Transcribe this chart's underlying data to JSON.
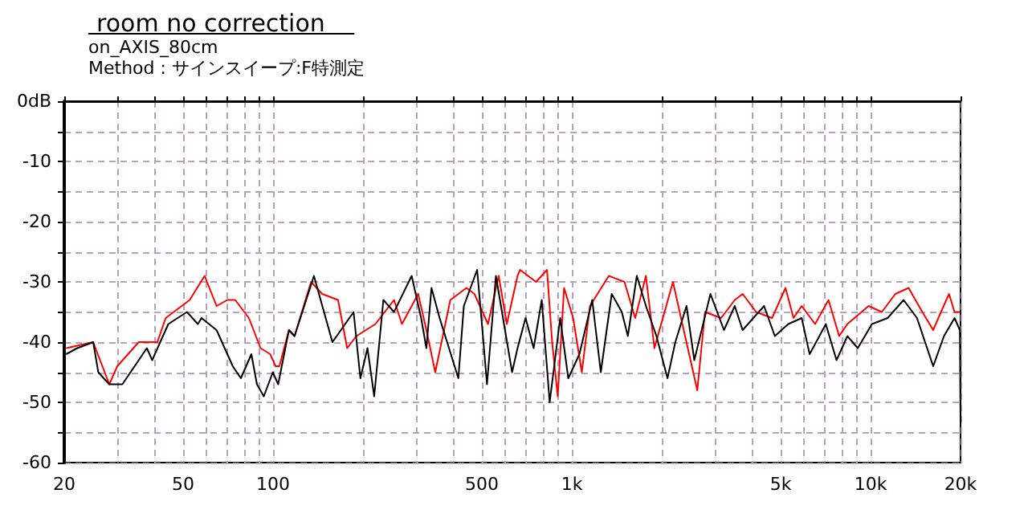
{
  "chart_data": {
    "type": "line",
    "title": "room no correction",
    "subtitle": "on_AXIS_80cm",
    "annotations": [
      "Method : サインスイープ:F特測定"
    ],
    "xlim": [
      20,
      20000
    ],
    "ylim": [
      -60,
      0
    ],
    "log": "x",
    "grid": true,
    "marker": "none",
    "line_style": "solid",
    "xticks": [
      20,
      {
        "value": 30,
        "label": null
      },
      {
        "value": 40,
        "label": null
      },
      50,
      {
        "value": 60,
        "label": null
      },
      {
        "value": 70,
        "label": null
      },
      {
        "value": 80,
        "label": null
      },
      {
        "value": 90,
        "label": null
      },
      100,
      {
        "value": 200,
        "label": null
      },
      {
        "value": 300,
        "label": null
      },
      {
        "value": 400,
        "label": null
      },
      500,
      {
        "value": 600,
        "label": null
      },
      {
        "value": 700,
        "label": null
      },
      {
        "value": 800,
        "label": null
      },
      {
        "value": 900,
        "label": null
      },
      {
        "value": 1000,
        "label": "1k"
      },
      {
        "value": 2000,
        "label": null
      },
      {
        "value": 3000,
        "label": null
      },
      {
        "value": 4000,
        "label": null
      },
      {
        "value": 5000,
        "label": "5k"
      },
      {
        "value": 6000,
        "label": null
      },
      {
        "value": 7000,
        "label": null
      },
      {
        "value": 8000,
        "label": null
      },
      {
        "value": 9000,
        "label": null
      },
      {
        "value": 10000,
        "label": "10k"
      },
      {
        "value": 20000,
        "label": "20k"
      }
    ],
    "yticks": [
      {
        "value": 0,
        "label": "0dB"
      },
      {
        "value": -5,
        "label": null
      },
      -10,
      {
        "value": -15,
        "label": null
      },
      -20,
      {
        "value": -25,
        "label": null
      },
      -30,
      {
        "value": -35,
        "label": null
      },
      -40,
      {
        "value": -45,
        "label": null
      },
      -50,
      {
        "value": -55,
        "label": null
      },
      -60
    ],
    "series": [
      {
        "color": "#ff0000",
        "x": [
          20.3,
          25,
          28.3,
          30.1,
          35.5,
          41,
          43.7,
          52.6,
          59,
          64.7,
          70.3,
          74.7,
          83,
          90.8,
          97.8,
          102,
          105,
          113,
          118,
          134,
          146,
          165,
          177,
          190,
          220,
          254,
          270,
          306,
          326,
          349,
          392,
          444,
          472,
          524,
          569,
          606,
          658,
          671,
          759,
          826,
          859,
          897,
          942,
          1010,
          1080,
          1150,
          1330,
          1500,
          1630,
          1770,
          1890,
          2180,
          2320,
          2630,
          2790,
          3160,
          3510,
          3730,
          4140,
          4680,
          5190,
          5520,
          5880,
          6520,
          7230,
          7850,
          8360,
          9850,
          10900,
          12100,
          13400,
          14900,
          16200,
          17200,
          18300,
          19100,
          19900
        ],
        "values": [
          -41,
          -40,
          -47,
          -44,
          -40,
          -40,
          -36,
          -33,
          -29,
          -34,
          -33,
          -33,
          -36,
          -41,
          -42,
          -44,
          -44,
          -38,
          -39,
          -30,
          -32,
          -33,
          -41,
          -39,
          -37,
          -33,
          -37,
          -32,
          -38,
          -45,
          -33,
          -31,
          -32,
          -37,
          -29,
          -37,
          -29,
          -28,
          -30,
          -28,
          -40,
          -49,
          -31,
          -36,
          -45,
          -34,
          -29,
          -30,
          -36,
          -29,
          -41,
          -30,
          -36,
          -48,
          -35,
          -36,
          -33,
          -32,
          -35,
          -36,
          -31,
          -36,
          -34,
          -37,
          -33,
          -39,
          -37,
          -34,
          -35,
          -32,
          -31,
          -35,
          -38,
          -35,
          -32,
          -35,
          -35
        ]
      },
      {
        "color": "#000000",
        "x": [
          20.3,
          22.1,
          25,
          26,
          28.3,
          31.3,
          37.8,
          39.4,
          41.9,
          44.6,
          51.5,
          56,
          57.6,
          64.7,
          73.3,
          78,
          84.6,
          88.3,
          93.1,
          99.8,
          104,
          113,
          118,
          137,
          158,
          186,
          196,
          207,
          218,
          234,
          254,
          291,
          313,
          326,
          339,
          361,
          417,
          435,
          482,
          502,
          520,
          557,
          631,
          658,
          700,
          745,
          793,
          843,
          914,
          973,
          1060,
          1170,
          1250,
          1360,
          1470,
          1540,
          1650,
          1770,
          1920,
          2090,
          2220,
          2420,
          2570,
          2910,
          3230,
          3510,
          3730,
          4050,
          4400,
          4780,
          5300,
          5880,
          6250,
          7080,
          7690,
          8360,
          9060,
          10100,
          11400,
          12900,
          14300,
          16200,
          17600,
          19100,
          19900,
          20000
        ],
        "values": [
          -42,
          -41,
          -40,
          -45,
          -47,
          -47,
          -41,
          -43,
          -40,
          -37,
          -35,
          -37,
          -36,
          -38,
          -44,
          -46,
          -42,
          -47,
          -49,
          -45,
          -47,
          -38,
          -39,
          -29,
          -40,
          -35,
          -46,
          -41,
          -49,
          -33,
          -35,
          -29,
          -36,
          -41,
          -31,
          -36,
          -46,
          -34,
          -28,
          -38,
          -47,
          -29,
          -45,
          -41,
          -36,
          -41,
          -33,
          -50,
          -36,
          -46,
          -42,
          -33,
          -45,
          -32,
          -35,
          -39,
          -29,
          -34,
          -39,
          -46,
          -40,
          -34,
          -43,
          -32,
          -38,
          -34,
          -38,
          -36,
          -34,
          -39,
          -37,
          -36,
          -42,
          -37,
          -43,
          -39,
          -41,
          -37,
          -36,
          -33,
          -36,
          -44,
          -39,
          -36,
          -38,
          -54
        ]
      }
    ]
  }
}
